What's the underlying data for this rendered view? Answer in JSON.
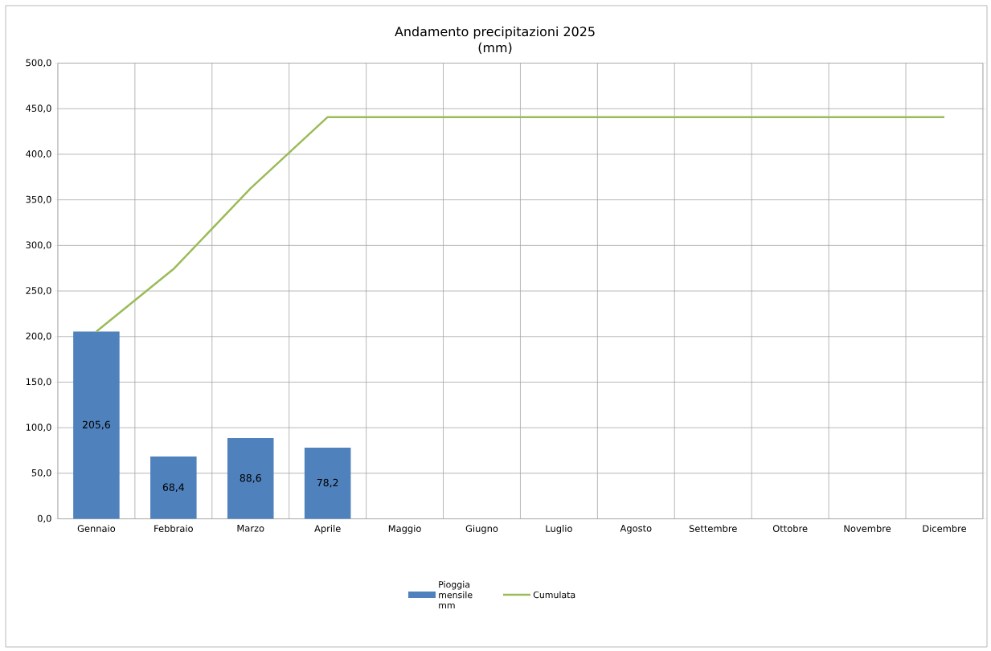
{
  "chart_data": {
    "type": "bar",
    "title": "Andamento precipitazioni 2025",
    "subtitle": "(mm)",
    "categories": [
      "Gennaio",
      "Febbraio",
      "Marzo",
      "Aprile",
      "Maggio",
      "Giugno",
      "Luglio",
      "Agosto",
      "Settembre",
      "Ottobre",
      "Novembre",
      "Dicembre"
    ],
    "series": [
      {
        "name": "Pioggia mensile mm",
        "color": "#4f81bd",
        "values": [
          205.6,
          68.4,
          88.6,
          78.2,
          null,
          null,
          null,
          null,
          null,
          null,
          null,
          null
        ],
        "value_labels": [
          "205,6",
          "68,4",
          "88,6",
          "78,2",
          null,
          null,
          null,
          null,
          null,
          null,
          null,
          null
        ]
      },
      {
        "name": "Cumulata",
        "type": "line",
        "color": "#9bbb59",
        "values": [
          205.6,
          274.0,
          362.6,
          440.8,
          440.8,
          440.8,
          440.8,
          440.8,
          440.8,
          440.8,
          440.8,
          440.8
        ]
      }
    ],
    "ylim": [
      0,
      500
    ],
    "yticks": [
      {
        "value": 0,
        "label": "0,0"
      },
      {
        "value": 50,
        "label": "50,0"
      },
      {
        "value": 100,
        "label": "100,0"
      },
      {
        "value": 150,
        "label": "150,0"
      },
      {
        "value": 200,
        "label": "200,0"
      },
      {
        "value": 250,
        "label": "250,0"
      },
      {
        "value": 300,
        "label": "300,0"
      },
      {
        "value": 350,
        "label": "350,0"
      },
      {
        "value": 400,
        "label": "400,0"
      },
      {
        "value": 450,
        "label": "450,0"
      },
      {
        "value": 500,
        "label": "500,0"
      }
    ],
    "grid": true,
    "legend": "bottom"
  }
}
